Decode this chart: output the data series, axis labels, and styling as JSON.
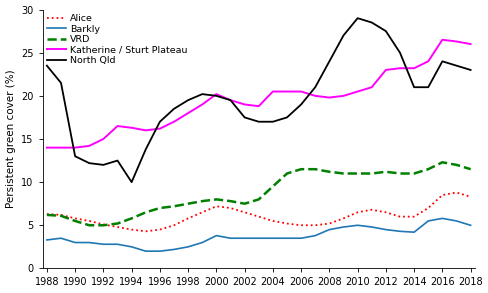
{
  "years": [
    1988,
    1989,
    1990,
    1991,
    1992,
    1993,
    1994,
    1995,
    1996,
    1997,
    1998,
    1999,
    2000,
    2001,
    2002,
    2003,
    2004,
    2005,
    2006,
    2007,
    2008,
    2009,
    2010,
    2011,
    2012,
    2013,
    2014,
    2015,
    2016,
    2017,
    2018
  ],
  "alice": [
    6.3,
    6.2,
    5.8,
    5.5,
    5.1,
    4.8,
    4.5,
    4.3,
    4.5,
    5.0,
    5.8,
    6.5,
    7.2,
    7.0,
    6.5,
    6.0,
    5.5,
    5.2,
    5.0,
    5.0,
    5.2,
    5.8,
    6.5,
    6.8,
    6.5,
    6.0,
    6.0,
    7.0,
    8.5,
    8.8,
    8.3
  ],
  "barkly": [
    3.3,
    3.5,
    3.0,
    3.0,
    2.8,
    2.8,
    2.5,
    2.0,
    2.0,
    2.2,
    2.5,
    3.0,
    3.8,
    3.5,
    3.5,
    3.5,
    3.5,
    3.5,
    3.5,
    3.8,
    4.5,
    4.8,
    5.0,
    4.8,
    4.5,
    4.3,
    4.2,
    5.5,
    5.8,
    5.5,
    5.0
  ],
  "vrd": [
    6.2,
    6.1,
    5.5,
    5.0,
    5.0,
    5.2,
    5.8,
    6.5,
    7.0,
    7.2,
    7.5,
    7.8,
    8.0,
    7.8,
    7.5,
    8.0,
    9.5,
    11.0,
    11.5,
    11.5,
    11.2,
    11.0,
    11.0,
    11.0,
    11.2,
    11.0,
    11.0,
    11.5,
    12.3,
    12.0,
    11.5
  ],
  "katherine": [
    14.0,
    14.0,
    14.0,
    14.2,
    15.0,
    16.5,
    16.3,
    16.0,
    16.2,
    17.0,
    18.0,
    19.0,
    20.2,
    19.5,
    19.0,
    18.8,
    20.5,
    20.5,
    20.5,
    20.0,
    19.8,
    20.0,
    20.5,
    21.0,
    23.0,
    23.2,
    23.2,
    24.0,
    26.5,
    26.3,
    26.0
  ],
  "north_qld": [
    23.5,
    21.5,
    13.0,
    12.2,
    12.0,
    12.5,
    10.0,
    13.8,
    17.0,
    18.5,
    19.5,
    20.2,
    20.0,
    19.5,
    17.5,
    17.0,
    17.0,
    17.5,
    19.0,
    21.0,
    24.0,
    27.0,
    29.0,
    28.5,
    27.5,
    25.0,
    21.0,
    21.0,
    24.0,
    23.5,
    23.0
  ],
  "alice_color": "#ff0000",
  "barkly_color": "#1f77b4",
  "vrd_color": "#008000",
  "katherine_color": "#ff00ff",
  "north_qld_color": "#000000",
  "ylabel": "Persistent green cover (%)",
  "ylim": [
    0,
    30
  ],
  "xlim": [
    1988,
    2018
  ],
  "yticks": [
    0,
    5,
    10,
    15,
    20,
    25,
    30
  ],
  "xticks": [
    1988,
    1990,
    1992,
    1994,
    1996,
    1998,
    2000,
    2002,
    2004,
    2006,
    2008,
    2010,
    2012,
    2014,
    2016,
    2018
  ],
  "tick_fontsize": 7,
  "ylabel_fontsize": 7.5,
  "legend_fontsize": 6.8
}
